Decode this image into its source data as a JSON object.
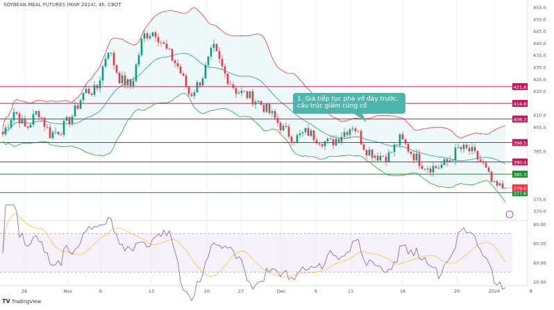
{
  "chart_data": {
    "type": "candlestick",
    "title": "SOYBEAN MEAL FUTURES (MAR 2024), 4h, CBOT",
    "ylim": [
      367,
      457
    ],
    "y_ticks": [
      "455.0",
      "450.0",
      "445.0",
      "440.0",
      "435.0",
      "430.0",
      "425.0",
      "420.0",
      "410.0",
      "405.0",
      "395.0",
      "375.0",
      "370.0"
    ],
    "y_tick_values": [
      455,
      450,
      445,
      440,
      435,
      430,
      425,
      420,
      410,
      405,
      395,
      375,
      370
    ],
    "x_ticks": [
      "26",
      "Nov",
      "6",
      "13",
      "20",
      "27",
      "Dec",
      "6",
      "11",
      "18",
      "26",
      "2024",
      "8"
    ],
    "price_path": [
      402,
      412,
      404,
      412,
      402,
      404,
      410,
      420,
      420,
      438,
      425,
      422,
      443,
      445,
      437,
      430,
      418,
      425,
      438,
      427,
      420,
      418,
      415,
      410,
      404,
      400,
      403,
      400,
      398,
      402,
      406,
      396,
      393,
      393,
      400,
      394,
      389,
      388,
      390,
      396,
      395,
      390,
      380,
      379.6
    ],
    "levels": [
      {
        "value": 421.8,
        "label": "421.8",
        "color": "#c2185b"
      },
      {
        "value": 414.8,
        "label": "414.8",
        "color": "#c2185b"
      },
      {
        "value": 408.3,
        "label": "408.3",
        "color": "#c2185b"
      },
      {
        "value": 398.5,
        "label": "398.5",
        "color": "#c2185b"
      },
      {
        "value": 390.4,
        "label": "390.4",
        "color": "#c2185b"
      },
      {
        "value": 385.3,
        "label": "385.3",
        "color": "#1b8a2e"
      },
      {
        "value": 377.6,
        "label": "377.6",
        "color": "#1b8a2e"
      }
    ],
    "last_price": {
      "value": 379.6,
      "label": "379.6",
      "color": "#f23645"
    },
    "indicators": [
      "Bollinger Bands",
      "RSI"
    ],
    "rsi": {
      "ylim": [
        20,
        80
      ],
      "ticks": [
        "80.00",
        "60.00",
        "40.00",
        "20.00"
      ],
      "tick_values": [
        80,
        60,
        40,
        20
      ],
      "band": [
        30,
        70
      ]
    },
    "annotation": "1. Giá tiếp tục phá vỡ đáy trước, cấu trúc giảm củng cố"
  },
  "footer": {
    "logo": "TradingView"
  },
  "colors": {
    "up": "#089981",
    "down": "#f23645",
    "bb_upper": "#e53935",
    "bb_lower": "#2e9e3a",
    "bb_mid": "#2196a0",
    "rsi": "#7e57c2"
  }
}
